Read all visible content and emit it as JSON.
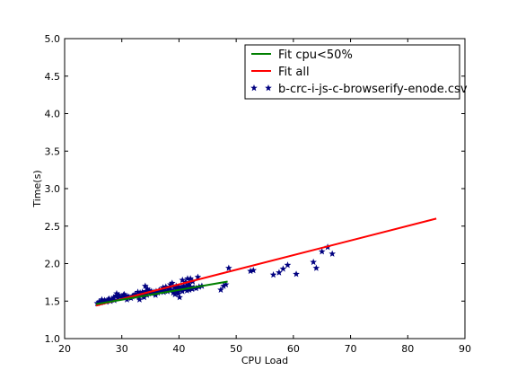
{
  "chart_data": {
    "type": "scatter",
    "title": "",
    "xlabel": "CPU Load",
    "ylabel": "Time(s)",
    "xlim": [
      20,
      90
    ],
    "ylim": [
      1.0,
      5.0
    ],
    "xticks": [
      20,
      30,
      40,
      50,
      60,
      70,
      80,
      90
    ],
    "yticks": [
      1.0,
      1.5,
      2.0,
      2.5,
      3.0,
      3.5,
      4.0,
      4.5,
      5.0
    ],
    "xtick_labels": [
      "20",
      "30",
      "40",
      "50",
      "60",
      "70",
      "80",
      "90"
    ],
    "ytick_labels": [
      "1.0",
      "1.5",
      "2.0",
      "2.5",
      "3.0",
      "3.5",
      "4.0",
      "4.5",
      "5.0"
    ],
    "grid": false,
    "legend_position": "top-right",
    "series": [
      {
        "name": "Fit cpu<50%",
        "kind": "line",
        "color": "#007f00",
        "x": [
          25.5,
          48.5
        ],
        "y": [
          1.46,
          1.76
        ]
      },
      {
        "name": "Fit all",
        "kind": "line",
        "color": "#ff0000",
        "x": [
          25.5,
          85
        ],
        "y": [
          1.44,
          2.6
        ]
      },
      {
        "name": "b-crc-i-js-c-browserify-enode.csv",
        "kind": "scatter",
        "marker": "star",
        "color": "#000080",
        "x": [
          25.7,
          26.0,
          26.3,
          26.6,
          27.0,
          27.3,
          27.6,
          28.0,
          28.3,
          28.6,
          29.0,
          29.3,
          29.6,
          30.0,
          30.3,
          30.6,
          31.0,
          31.3,
          31.6,
          32.0,
          32.3,
          32.6,
          33.0,
          33.2,
          33.4,
          33.6,
          33.8,
          34.0,
          34.2,
          34.4,
          34.6,
          34.8,
          35.0,
          35.3,
          35.6,
          36.0,
          36.3,
          36.6,
          37.0,
          37.3,
          37.6,
          38.0,
          38.3,
          38.6,
          39.0,
          39.2,
          39.4,
          39.6,
          39.8,
          40.0,
          40.2,
          40.4,
          40.6,
          40.8,
          41.0,
          41.2,
          41.4,
          41.6,
          41.8,
          42.0,
          42.3,
          42.6,
          43.0,
          43.5,
          44.0,
          26.5,
          27.8,
          29.1,
          30.4,
          31.8,
          33.1,
          34.5,
          35.9,
          37.2,
          38.5,
          39.9,
          41.1,
          42.4,
          28.7,
          30.9,
          32.8,
          34.1,
          36.5,
          38.8,
          40.6,
          29.5,
          31.2,
          33.5,
          35.2,
          37.7,
          39.5,
          41.7,
          40.1,
          42.0,
          33.9,
          39.3,
          41.5,
          43.3,
          47.3,
          47.8,
          48.2,
          48.7,
          52.5,
          53.0,
          56.5,
          57.5,
          58.2,
          59.0,
          60.5,
          63.5,
          64.0,
          65.0,
          66.0,
          66.8
        ],
        "y": [
          1.47,
          1.49,
          1.48,
          1.5,
          1.51,
          1.49,
          1.52,
          1.5,
          1.53,
          1.55,
          1.57,
          1.54,
          1.56,
          1.55,
          1.58,
          1.57,
          1.56,
          1.55,
          1.54,
          1.57,
          1.59,
          1.58,
          1.55,
          1.61,
          1.57,
          1.62,
          1.59,
          1.6,
          1.63,
          1.58,
          1.62,
          1.64,
          1.61,
          1.6,
          1.62,
          1.63,
          1.61,
          1.64,
          1.65,
          1.62,
          1.66,
          1.63,
          1.67,
          1.65,
          1.61,
          1.68,
          1.64,
          1.66,
          1.62,
          1.69,
          1.65,
          1.67,
          1.63,
          1.7,
          1.66,
          1.68,
          1.64,
          1.71,
          1.65,
          1.69,
          1.66,
          1.68,
          1.67,
          1.69,
          1.7,
          1.52,
          1.53,
          1.6,
          1.59,
          1.56,
          1.52,
          1.66,
          1.58,
          1.68,
          1.72,
          1.6,
          1.75,
          1.76,
          1.51,
          1.52,
          1.62,
          1.7,
          1.64,
          1.74,
          1.78,
          1.58,
          1.55,
          1.59,
          1.63,
          1.69,
          1.7,
          1.74,
          1.55,
          1.8,
          1.55,
          1.59,
          1.8,
          1.82,
          1.65,
          1.7,
          1.72,
          1.94,
          1.9,
          1.91,
          1.85,
          1.88,
          1.93,
          1.98,
          1.86,
          2.02,
          1.94,
          2.16,
          2.22,
          2.13
        ]
      }
    ]
  }
}
